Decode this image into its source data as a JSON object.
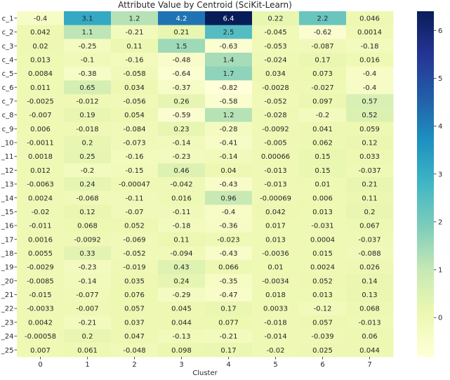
{
  "chart_data": {
    "type": "heatmap",
    "title": "Attribute Value by Centroid (SciKit-Learn)",
    "xlabel": "Cluster",
    "ylabel": "",
    "columns": [
      "0",
      "1",
      "2",
      "3",
      "4",
      "5",
      "6",
      "7"
    ],
    "rows": [
      "c_1",
      "c_2",
      "c_3",
      "c_4",
      "c_5",
      "c_6",
      "c_7",
      "c_8",
      "c_9",
      "_10",
      "_11",
      "_12",
      "_13",
      "_14",
      "_15",
      "_16",
      "_17",
      "_18",
      "_19",
      "_20",
      "_21",
      "_22",
      "_23",
      "_24",
      "_25"
    ],
    "values": [
      [
        -0.4,
        3.1,
        1.2,
        4.2,
        6.4,
        0.22,
        2.2,
        0.046
      ],
      [
        0.042,
        1.1,
        -0.21,
        0.21,
        2.5,
        -0.045,
        -0.62,
        0.0014
      ],
      [
        0.02,
        -0.25,
        0.11,
        1.5,
        -0.63,
        -0.053,
        -0.087,
        -0.18
      ],
      [
        0.013,
        -0.1,
        -0.16,
        -0.48,
        1.4,
        -0.024,
        0.17,
        0.016
      ],
      [
        0.0084,
        -0.38,
        -0.058,
        -0.64,
        1.7,
        0.034,
        0.073,
        -0.4
      ],
      [
        0.011,
        0.65,
        0.034,
        -0.37,
        -0.82,
        -0.0028,
        -0.027,
        -0.4
      ],
      [
        -0.0025,
        -0.012,
        -0.056,
        0.26,
        -0.58,
        -0.052,
        0.097,
        0.57
      ],
      [
        -0.007,
        0.19,
        0.054,
        -0.59,
        1.2,
        -0.028,
        -0.2,
        0.52
      ],
      [
        0.006,
        -0.018,
        -0.084,
        0.23,
        -0.28,
        -0.0092,
        0.041,
        0.059
      ],
      [
        -0.0011,
        0.2,
        -0.073,
        -0.14,
        -0.41,
        -0.005,
        0.062,
        0.12
      ],
      [
        0.0018,
        0.25,
        -0.16,
        -0.23,
        -0.14,
        0.00066,
        0.15,
        0.033
      ],
      [
        0.012,
        -0.2,
        -0.15,
        0.46,
        0.04,
        -0.013,
        0.15,
        -0.037
      ],
      [
        -0.0063,
        0.24,
        -0.00047,
        -0.042,
        -0.43,
        -0.013,
        0.01,
        0.21
      ],
      [
        0.0024,
        -0.068,
        -0.11,
        0.016,
        0.96,
        -0.00069,
        0.006,
        0.11
      ],
      [
        -0.02,
        0.12,
        -0.07,
        -0.11,
        -0.4,
        0.042,
        0.013,
        0.2
      ],
      [
        -0.011,
        0.068,
        0.052,
        -0.18,
        -0.36,
        0.017,
        -0.031,
        0.067
      ],
      [
        0.0016,
        -0.0092,
        -0.069,
        0.11,
        -0.023,
        0.013,
        0.0004,
        -0.037
      ],
      [
        0.0055,
        0.33,
        -0.052,
        -0.094,
        -0.43,
        -0.0036,
        0.015,
        -0.088
      ],
      [
        -0.0029,
        -0.23,
        -0.019,
        0.43,
        0.066,
        0.01,
        0.0024,
        0.026
      ],
      [
        -0.0085,
        -0.14,
        0.035,
        0.24,
        -0.35,
        -0.0034,
        0.052,
        0.14
      ],
      [
        -0.015,
        -0.077,
        0.076,
        -0.29,
        -0.47,
        0.018,
        0.013,
        0.13
      ],
      [
        -0.0033,
        -0.007,
        0.057,
        0.045,
        0.17,
        0.0033,
        -0.12,
        0.068
      ],
      [
        0.0042,
        -0.21,
        0.037,
        0.044,
        0.077,
        -0.018,
        0.057,
        -0.013
      ],
      [
        -0.00058,
        0.2,
        0.047,
        -0.13,
        -0.21,
        -0.014,
        -0.039,
        0.06
      ],
      [
        0.007,
        0.061,
        -0.048,
        0.098,
        0.17,
        -0.02,
        0.025,
        0.044
      ]
    ],
    "value_labels": [
      [
        "-0.4",
        "3.1",
        "1.2",
        "4.2",
        "6.4",
        "0.22",
        "2.2",
        "0.046"
      ],
      [
        "0.042",
        "1.1",
        "-0.21",
        "0.21",
        "2.5",
        "-0.045",
        "-0.62",
        "0.0014"
      ],
      [
        "0.02",
        "-0.25",
        "0.11",
        "1.5",
        "-0.63",
        "-0.053",
        "-0.087",
        "-0.18"
      ],
      [
        "0.013",
        "-0.1",
        "-0.16",
        "-0.48",
        "1.4",
        "-0.024",
        "0.17",
        "0.016"
      ],
      [
        "0.0084",
        "-0.38",
        "-0.058",
        "-0.64",
        "1.7",
        "0.034",
        "0.073",
        "-0.4"
      ],
      [
        "0.011",
        "0.65",
        "0.034",
        "-0.37",
        "-0.82",
        "-0.0028",
        "-0.027",
        "-0.4"
      ],
      [
        "-0.0025",
        "-0.012",
        "-0.056",
        "0.26",
        "-0.58",
        "-0.052",
        "0.097",
        "0.57"
      ],
      [
        "-0.007",
        "0.19",
        "0.054",
        "-0.59",
        "1.2",
        "-0.028",
        "-0.2",
        "0.52"
      ],
      [
        "0.006",
        "-0.018",
        "-0.084",
        "0.23",
        "-0.28",
        "-0.0092",
        "0.041",
        "0.059"
      ],
      [
        "-0.0011",
        "0.2",
        "-0.073",
        "-0.14",
        "-0.41",
        "-0.005",
        "0.062",
        "0.12"
      ],
      [
        "0.0018",
        "0.25",
        "-0.16",
        "-0.23",
        "-0.14",
        "0.00066",
        "0.15",
        "0.033"
      ],
      [
        "0.012",
        "-0.2",
        "-0.15",
        "0.46",
        "0.04",
        "-0.013",
        "0.15",
        "-0.037"
      ],
      [
        "-0.0063",
        "0.24",
        "-0.00047",
        "-0.042",
        "-0.43",
        "-0.013",
        "0.01",
        "0.21"
      ],
      [
        "0.0024",
        "-0.068",
        "-0.11",
        "0.016",
        "0.96",
        "-0.00069",
        "0.006",
        "0.11"
      ],
      [
        "-0.02",
        "0.12",
        "-0.07",
        "-0.11",
        "-0.4",
        "0.042",
        "0.013",
        "0.2"
      ],
      [
        "-0.011",
        "0.068",
        "0.052",
        "-0.18",
        "-0.36",
        "0.017",
        "-0.031",
        "0.067"
      ],
      [
        "0.0016",
        "-0.0092",
        "-0.069",
        "0.11",
        "-0.023",
        "0.013",
        "0.0004",
        "-0.037"
      ],
      [
        "0.0055",
        "0.33",
        "-0.052",
        "-0.094",
        "-0.43",
        "-0.0036",
        "0.015",
        "-0.088"
      ],
      [
        "-0.0029",
        "-0.23",
        "-0.019",
        "0.43",
        "0.066",
        "0.01",
        "0.0024",
        "0.026"
      ],
      [
        "-0.0085",
        "-0.14",
        "0.035",
        "0.24",
        "-0.35",
        "-0.0034",
        "0.052",
        "0.14"
      ],
      [
        "-0.015",
        "-0.077",
        "0.076",
        "-0.29",
        "-0.47",
        "0.018",
        "0.013",
        "0.13"
      ],
      [
        "-0.0033",
        "-0.007",
        "0.057",
        "0.045",
        "0.17",
        "0.0033",
        "-0.12",
        "0.068"
      ],
      [
        "0.0042",
        "-0.21",
        "0.037",
        "0.044",
        "0.077",
        "-0.018",
        "0.057",
        "-0.013"
      ],
      [
        "-0.00058",
        "0.2",
        "0.047",
        "-0.13",
        "-0.21",
        "-0.014",
        "-0.039",
        "0.06"
      ],
      [
        "0.007",
        "0.061",
        "-0.048",
        "0.098",
        "0.17",
        "-0.02",
        "0.025",
        "0.044"
      ]
    ],
    "colorbar": {
      "colormap": "YlGnBu",
      "vmin": -0.82,
      "vmax": 6.4,
      "ticks": [
        0,
        1,
        2,
        3,
        4,
        5,
        6
      ],
      "tick_labels": [
        "0",
        "1",
        "2",
        "3",
        "4",
        "5",
        "6"
      ]
    },
    "grid": false,
    "legend": "colorbar-right"
  }
}
